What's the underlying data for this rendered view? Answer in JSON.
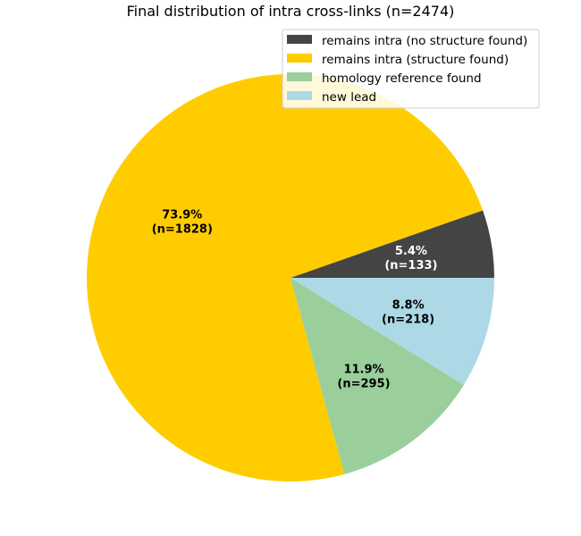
{
  "chart_data": {
    "type": "pie",
    "title": "Final distribution of intra cross-links (n=2474)",
    "total": 2474,
    "start_angle_deg": 0,
    "direction": "counterclockwise",
    "legend_position": "top-right",
    "slices": [
      {
        "name": "remains intra (no structure found)",
        "value": 133,
        "percent_label": "5.4%",
        "count_label": "(n=133)",
        "color": "#454444",
        "label_color": "#ffffff"
      },
      {
        "name": "remains intra (structure found)",
        "value": 1828,
        "percent_label": "73.9%",
        "count_label": "(n=1828)",
        "color": "#ffcc00",
        "label_color": "#000000"
      },
      {
        "name": "homology reference found",
        "value": 295,
        "percent_label": "11.9%",
        "count_label": "(n=295)",
        "color": "#9acf9b",
        "label_color": "#000000"
      },
      {
        "name": "new lead",
        "value": 218,
        "percent_label": "8.8%",
        "count_label": "(n=218)",
        "color": "#add8e6",
        "label_color": "#000000"
      }
    ]
  }
}
